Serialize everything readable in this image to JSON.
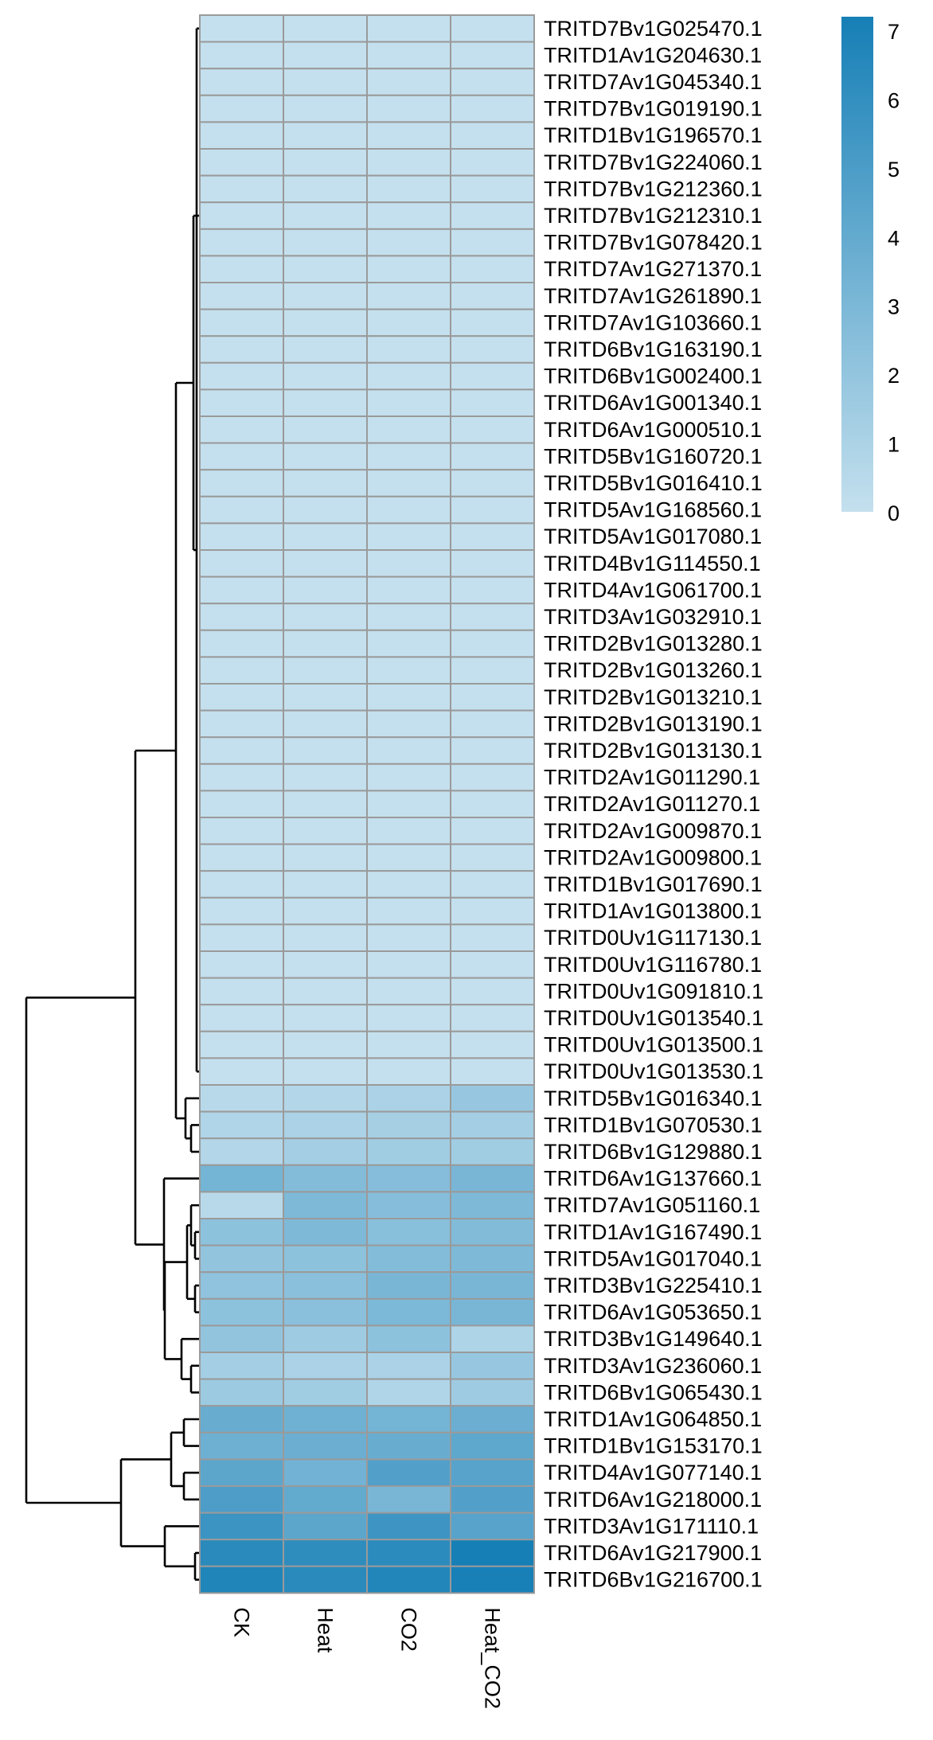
{
  "chart_data": {
    "type": "heatmap",
    "columns": [
      "CK",
      "Heat",
      "CO2",
      "Heat_CO2"
    ],
    "rows": [
      "TRITD7Bv1G025470.1",
      "TRITD1Av1G204630.1",
      "TRITD7Av1G045340.1",
      "TRITD7Bv1G019190.1",
      "TRITD1Bv1G196570.1",
      "TRITD7Bv1G224060.1",
      "TRITD7Bv1G212360.1",
      "TRITD7Bv1G212310.1",
      "TRITD7Bv1G078420.1",
      "TRITD7Av1G271370.1",
      "TRITD7Av1G261890.1",
      "TRITD7Av1G103660.1",
      "TRITD6Bv1G163190.1",
      "TRITD6Bv1G002400.1",
      "TRITD6Av1G001340.1",
      "TRITD6Av1G000510.1",
      "TRITD5Bv1G160720.1",
      "TRITD5Bv1G016410.1",
      "TRITD5Av1G168560.1",
      "TRITD5Av1G017080.1",
      "TRITD4Bv1G114550.1",
      "TRITD4Av1G061700.1",
      "TRITD3Av1G032910.1",
      "TRITD2Bv1G013280.1",
      "TRITD2Bv1G013260.1",
      "TRITD2Bv1G013210.1",
      "TRITD2Bv1G013190.1",
      "TRITD2Bv1G013130.1",
      "TRITD2Av1G011290.1",
      "TRITD2Av1G011270.1",
      "TRITD2Av1G009870.1",
      "TRITD2Av1G009800.1",
      "TRITD1Bv1G017690.1",
      "TRITD1Av1G013800.1",
      "TRITD0Uv1G117130.1",
      "TRITD0Uv1G116780.1",
      "TRITD0Uv1G091810.1",
      "TRITD0Uv1G013540.1",
      "TRITD0Uv1G013500.1",
      "TRITD0Uv1G013530.1",
      "TRITD5Bv1G016340.1",
      "TRITD1Bv1G070530.1",
      "TRITD6Bv1G129880.1",
      "TRITD6Av1G137660.1",
      "TRITD7Av1G051160.1",
      "TRITD1Av1G167490.1",
      "TRITD5Av1G017040.1",
      "TRITD3Bv1G225410.1",
      "TRITD6Av1G053650.1",
      "TRITD3Bv1G149640.1",
      "TRITD3Av1G236060.1",
      "TRITD6Bv1G065430.1",
      "TRITD1Av1G064850.1",
      "TRITD1Bv1G153170.1",
      "TRITD4Av1G077140.1",
      "TRITD6Av1G218000.1",
      "TRITD3Av1G171110.1",
      "TRITD6Av1G217900.1",
      "TRITD6Bv1G216700.1"
    ],
    "values": [
      [
        0,
        0,
        0,
        0
      ],
      [
        0,
        0,
        0,
        0
      ],
      [
        0,
        0,
        0,
        0
      ],
      [
        0,
        0,
        0,
        0
      ],
      [
        0,
        0,
        0,
        0
      ],
      [
        0,
        0,
        0,
        0
      ],
      [
        0,
        0,
        0,
        0
      ],
      [
        0,
        0,
        0,
        0
      ],
      [
        0,
        0,
        0,
        0
      ],
      [
        0,
        0,
        0,
        0
      ],
      [
        0,
        0,
        0,
        0
      ],
      [
        0,
        0,
        0,
        0
      ],
      [
        0,
        0,
        0,
        0
      ],
      [
        0,
        0,
        0,
        0
      ],
      [
        0,
        0,
        0,
        0
      ],
      [
        0,
        0,
        0,
        0
      ],
      [
        0,
        0,
        0,
        0
      ],
      [
        0,
        0,
        0,
        0
      ],
      [
        0,
        0,
        0,
        0
      ],
      [
        0,
        0,
        0,
        0
      ],
      [
        0,
        0,
        0,
        0
      ],
      [
        0,
        0,
        0,
        0
      ],
      [
        0,
        0,
        0,
        0
      ],
      [
        0,
        0,
        0,
        0
      ],
      [
        0,
        0,
        0,
        0
      ],
      [
        0,
        0,
        0,
        0
      ],
      [
        0,
        0,
        0,
        0
      ],
      [
        0,
        0,
        0,
        0
      ],
      [
        0,
        0,
        0,
        0
      ],
      [
        0,
        0,
        0,
        0
      ],
      [
        0,
        0,
        0,
        0
      ],
      [
        0,
        0,
        0,
        0
      ],
      [
        0,
        0,
        0,
        0
      ],
      [
        0,
        0,
        0,
        0
      ],
      [
        0,
        0,
        0,
        0
      ],
      [
        0,
        0,
        0,
        0
      ],
      [
        0,
        0,
        0,
        0
      ],
      [
        0,
        0,
        0,
        0
      ],
      [
        0,
        0,
        0,
        0
      ],
      [
        0,
        0,
        0,
        0
      ],
      [
        0.5,
        0.7,
        1.0,
        1.8
      ],
      [
        0.8,
        1.0,
        1.2,
        1.3
      ],
      [
        0.7,
        1.3,
        1.4,
        1.4
      ],
      [
        3.2,
        2.6,
        2.5,
        3.0
      ],
      [
        0.5,
        2.8,
        2.5,
        2.8
      ],
      [
        2.2,
        2.8,
        2.4,
        2.7
      ],
      [
        2.0,
        2.2,
        2.6,
        2.8
      ],
      [
        2.1,
        2.3,
        3.0,
        3.0
      ],
      [
        2.2,
        2.3,
        2.9,
        3.0
      ],
      [
        2.0,
        1.5,
        2.2,
        0.9
      ],
      [
        1.3,
        1.0,
        1.0,
        1.8
      ],
      [
        1.6,
        1.4,
        0.8,
        1.5
      ],
      [
        3.7,
        3.4,
        3.2,
        3.6
      ],
      [
        3.5,
        3.6,
        3.7,
        4.1
      ],
      [
        4.2,
        3.3,
        4.6,
        4.4
      ],
      [
        4.8,
        3.9,
        3.0,
        4.6
      ],
      [
        5.5,
        4.2,
        5.4,
        4.4
      ],
      [
        6.2,
        6.0,
        6.1,
        7.0
      ],
      [
        6.6,
        6.2,
        6.5,
        6.9
      ]
    ],
    "color_scale": {
      "min": 0,
      "max": 7,
      "low_color": "#c4e0ee",
      "high_color": "#167fb6"
    },
    "legend": {
      "placement": "top-right",
      "ticks": [
        "0",
        "1",
        "2",
        "3",
        "4",
        "5",
        "6",
        "7"
      ]
    },
    "row_dendrogram": true,
    "grid": true
  }
}
